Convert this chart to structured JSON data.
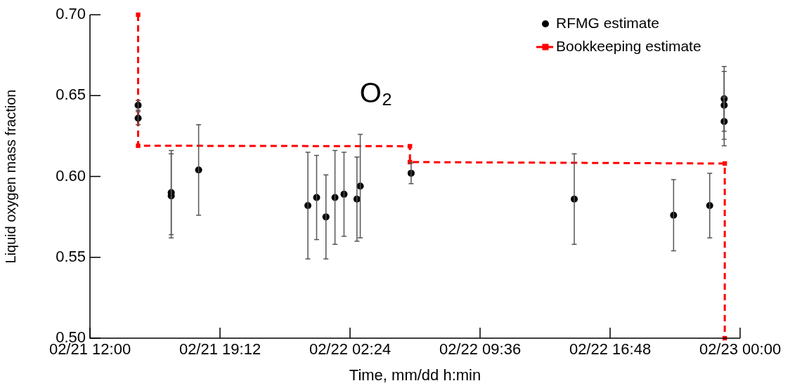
{
  "chart_data": {
    "type": "scatter",
    "xlabel": "Time, mm/dd h:min",
    "ylabel": "Liquid oxygen mass fraction",
    "annotations": [
      "O₂"
    ],
    "xlim": [
      "--02-21T12:00",
      "--02-23T00:00"
    ],
    "xticks": [
      {
        "value": "--02-21T12:00",
        "label": "02/21 12:00"
      },
      {
        "value": "--02-21T19:12",
        "label": "02/21 19:12"
      },
      {
        "value": "--02-22T02:24",
        "label": "02/22 02:24"
      },
      {
        "value": "--02-22T09:36",
        "label": "02/22 09:36"
      },
      {
        "value": "--02-22T16:48",
        "label": "02/22 16:48"
      },
      {
        "value": "--02-23T00:00",
        "label": "02/23 00:00"
      }
    ],
    "ylim": [
      0.5,
      0.7
    ],
    "yticks": [
      {
        "value": 0.5,
        "label": "0.50"
      },
      {
        "value": 0.55,
        "label": "0.55"
      },
      {
        "value": 0.6,
        "label": "0.60"
      },
      {
        "value": 0.65,
        "label": "0.65"
      },
      {
        "value": 0.7,
        "label": "0.70"
      }
    ],
    "legend": "top right",
    "grid": false,
    "series": [
      {
        "name": "RFMG estimate",
        "marker": "circle",
        "color": "#000000",
        "x": [
          "--02-21T14:40",
          "--02-21T14:40",
          "--02-21T16:30",
          "--02-21T16:30",
          "--02-21T18:01",
          "--02-22T00:04",
          "--02-22T00:33",
          "--02-22T01:04",
          "--02-22T01:34",
          "--02-22T02:04",
          "--02-22T02:47",
          "--02-22T02:58",
          "--02-22T05:47",
          "--02-22T14:49",
          "--02-22T20:19",
          "--02-22T22:19",
          "--02-22T23:07",
          "--02-22T23:07",
          "--02-22T23:07"
        ],
        "values": [
          0.644,
          0.636,
          0.59,
          0.588,
          0.604,
          0.582,
          0.587,
          0.575,
          0.587,
          0.589,
          0.586,
          0.594,
          0.602,
          0.586,
          0.576,
          0.582,
          0.648,
          0.644,
          0.634
        ],
        "errors": [
          0.003,
          0.004,
          0.026,
          0.026,
          0.028,
          0.033,
          0.026,
          0.026,
          0.029,
          0.026,
          0.026,
          0.032,
          0.0065,
          0.028,
          0.022,
          0.02,
          0.02,
          0.021,
          0.015
        ]
      },
      {
        "name": "Bookkeeping estimate",
        "type": "line",
        "marker": "square",
        "line_style": "dashed",
        "color": "#ff0000",
        "x": [
          "--02-21T14:40",
          "--02-21T14:40",
          "--02-22T05:43",
          "--02-22T05:43",
          "--02-22T23:09",
          "--02-22T23:09"
        ],
        "values": [
          0.7,
          0.619,
          0.6187,
          0.6089,
          0.608,
          0.5
        ]
      }
    ]
  }
}
